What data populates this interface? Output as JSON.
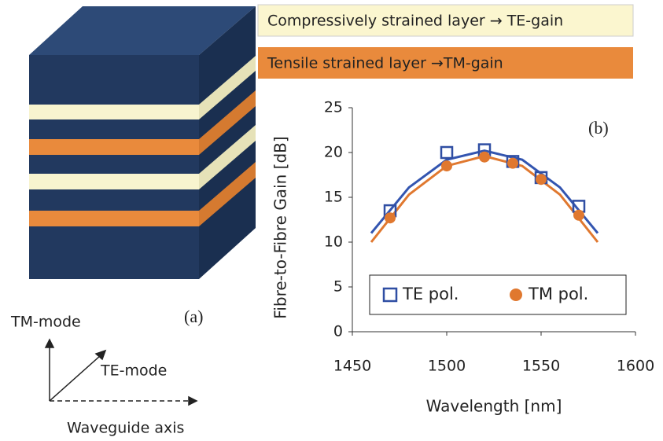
{
  "diagram": {
    "te_layer": "Compressively strained layer → TE-gain",
    "tm_layer": "Tensile strained layer →TM-gain",
    "panel": "(a)",
    "tm_mode": "TM-mode",
    "te_mode": "TE-mode",
    "axis": "Waveguide axis"
  },
  "chart_data": {
    "type": "scatter",
    "annotation": "(b)",
    "xlabel": "Wavelength [nm]",
    "ylabel": "Fibre-to-Fibre Gain [dB]",
    "xlim": [
      1450,
      1600
    ],
    "xticks": [
      1450,
      1500,
      1550,
      1600
    ],
    "ylim": [
      0,
      25
    ],
    "yticks": [
      0,
      5,
      10,
      15,
      20,
      25
    ],
    "series": [
      {
        "name": "TE pol.",
        "color": "#2f4ea3",
        "marker": "square",
        "x": [
          1470,
          1500,
          1520,
          1535,
          1550,
          1570
        ],
        "values": [
          13.5,
          20,
          20.3,
          19,
          17.2,
          14
        ]
      },
      {
        "name": "TM pol.",
        "color": "#e0782f",
        "marker": "circle",
        "x": [
          1470,
          1500,
          1520,
          1535,
          1550,
          1570
        ],
        "values": [
          12.7,
          18.5,
          19.5,
          18.8,
          17,
          13
        ]
      }
    ],
    "curves": [
      {
        "color": "#3355b0",
        "x": [
          1460,
          1480,
          1500,
          1520,
          1540,
          1560,
          1580
        ],
        "values": [
          11,
          16.1,
          19.2,
          20.2,
          19.2,
          16.1,
          11
        ]
      },
      {
        "color": "#e0782f",
        "x": [
          1460,
          1480,
          1500,
          1520,
          1540,
          1560,
          1580
        ],
        "values": [
          10,
          15.3,
          18.5,
          19.6,
          18.5,
          15.3,
          10
        ]
      }
    ]
  }
}
